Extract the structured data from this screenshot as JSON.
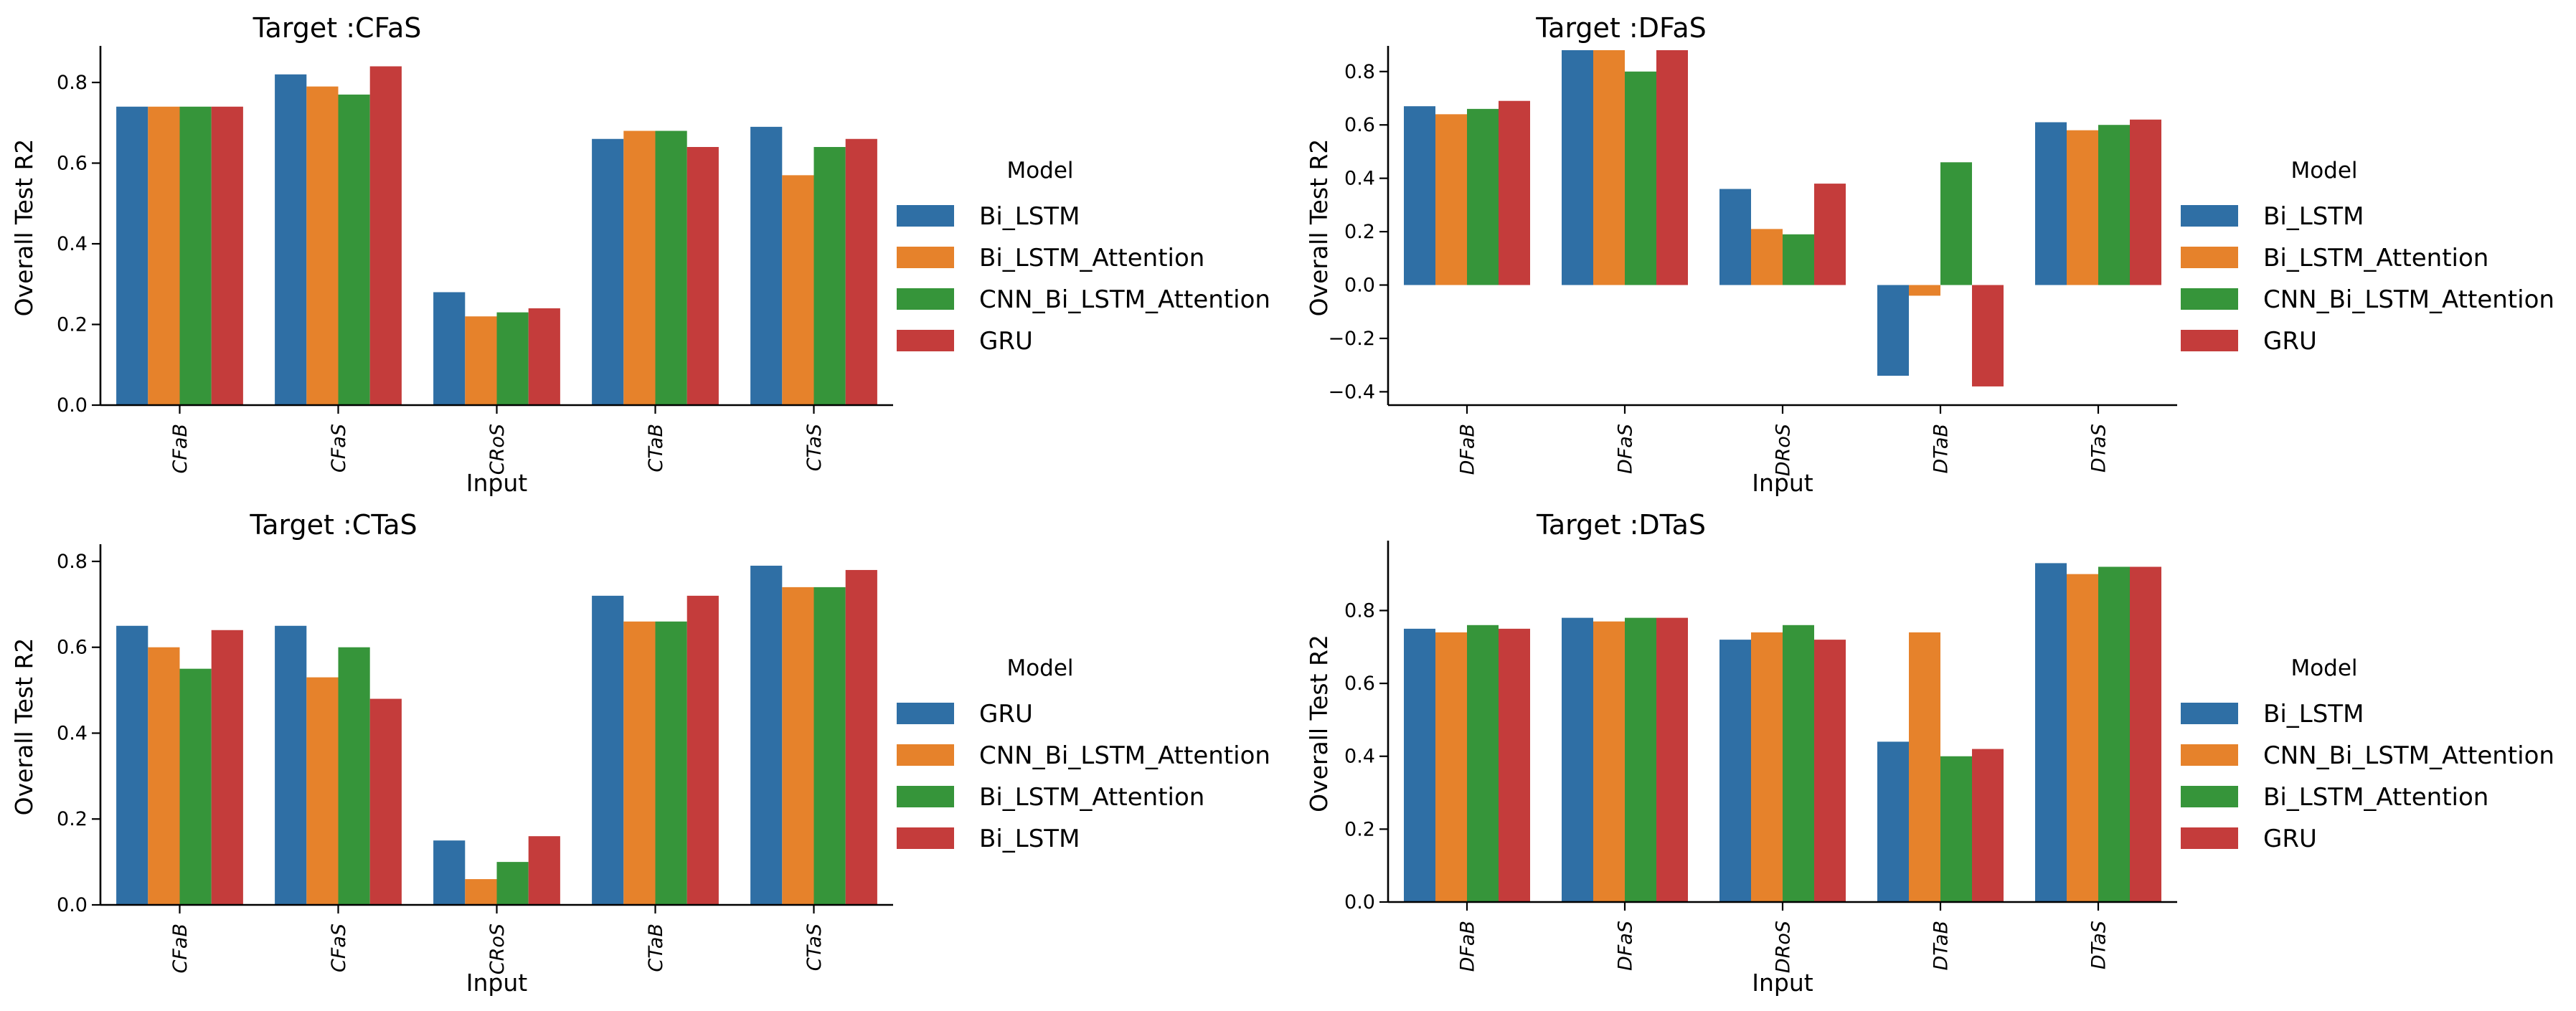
{
  "chart_data": [
    {
      "type": "bar",
      "title": "Target :CFaS",
      "xlabel": "Input",
      "ylabel": "Overall Test R2",
      "categories": [
        "CFaB",
        "CFaS",
        "CRoS",
        "CTaB",
        "CTaS"
      ],
      "ylim": [
        0,
        0.88
      ],
      "yticks": [
        0.0,
        0.2,
        0.4,
        0.6,
        0.8
      ],
      "ytick_labels": [
        "0.0",
        "0.2",
        "0.4",
        "0.6",
        "0.8"
      ],
      "grid": false,
      "legend": {
        "title": "Model",
        "placement": "right"
      },
      "series": [
        {
          "name": "Bi_LSTM",
          "color": "#2f6fa5",
          "values": [
            0.74,
            0.82,
            0.28,
            0.66,
            0.69
          ]
        },
        {
          "name": "Bi_LSTM_Attention",
          "color": "#e6822b",
          "values": [
            0.74,
            0.79,
            0.22,
            0.68,
            0.57
          ]
        },
        {
          "name": "CNN_Bi_LSTM_Attention",
          "color": "#36953a",
          "values": [
            0.74,
            0.77,
            0.23,
            0.68,
            0.64
          ]
        },
        {
          "name": "GRU",
          "color": "#c43c3b",
          "values": [
            0.74,
            0.84,
            0.24,
            0.64,
            0.66
          ]
        }
      ]
    },
    {
      "type": "bar",
      "title": "Target :DFaS",
      "xlabel": "Input",
      "ylabel": "Overall Test R2",
      "categories": [
        "DFaB",
        "DFaS",
        "DRoS",
        "DTaB",
        "DTaS"
      ],
      "ylim": [
        -0.45,
        0.88
      ],
      "yticks": [
        -0.4,
        -0.2,
        0.0,
        0.2,
        0.4,
        0.6,
        0.8
      ],
      "ytick_labels": [
        "−0.4",
        "−0.2",
        "0.0",
        "0.2",
        "0.4",
        "0.6",
        "0.8"
      ],
      "grid": false,
      "legend": {
        "title": "Model",
        "placement": "right"
      },
      "series": [
        {
          "name": "Bi_LSTM",
          "color": "#2f6fa5",
          "values": [
            0.67,
            0.88,
            0.36,
            -0.34,
            0.61
          ]
        },
        {
          "name": "Bi_LSTM_Attention",
          "color": "#e6822b",
          "values": [
            0.64,
            0.88,
            0.21,
            -0.04,
            0.58
          ]
        },
        {
          "name": "CNN_Bi_LSTM_Attention",
          "color": "#36953a",
          "values": [
            0.66,
            0.8,
            0.19,
            0.46,
            0.6
          ]
        },
        {
          "name": "GRU",
          "color": "#c43c3b",
          "values": [
            0.69,
            0.88,
            0.38,
            -0.38,
            0.62
          ]
        }
      ]
    },
    {
      "type": "bar",
      "title": "Target :CTaS",
      "xlabel": "Input",
      "ylabel": "Overall Test R2",
      "categories": [
        "CFaB",
        "CFaS",
        "CRoS",
        "CTaB",
        "CTaS"
      ],
      "ylim": [
        0,
        0.83
      ],
      "yticks": [
        0.0,
        0.2,
        0.4,
        0.6,
        0.8
      ],
      "ytick_labels": [
        "0.0",
        "0.2",
        "0.4",
        "0.6",
        "0.8"
      ],
      "grid": false,
      "legend": {
        "title": "Model",
        "placement": "right"
      },
      "series": [
        {
          "name": "GRU",
          "color": "#2f6fa5",
          "values": [
            0.65,
            0.65,
            0.15,
            0.72,
            0.79
          ]
        },
        {
          "name": "CNN_Bi_LSTM_Attention",
          "color": "#e6822b",
          "values": [
            0.6,
            0.53,
            0.06,
            0.66,
            0.74
          ]
        },
        {
          "name": "Bi_LSTM_Attention",
          "color": "#36953a",
          "values": [
            0.55,
            0.6,
            0.1,
            0.66,
            0.74
          ]
        },
        {
          "name": "Bi_LSTM",
          "color": "#c43c3b",
          "values": [
            0.64,
            0.48,
            0.16,
            0.72,
            0.78
          ]
        }
      ]
    },
    {
      "type": "bar",
      "title": "Target :DTaS",
      "xlabel": "Input",
      "ylabel": "Overall Test R2",
      "categories": [
        "DFaB",
        "DFaS",
        "DRoS",
        "DTaB",
        "DTaS"
      ],
      "ylim": [
        0,
        0.98
      ],
      "yticks": [
        0.0,
        0.2,
        0.4,
        0.6,
        0.8
      ],
      "ytick_labels": [
        "0.0",
        "0.2",
        "0.4",
        "0.6",
        "0.8"
      ],
      "grid": false,
      "legend": {
        "title": "Model",
        "placement": "right"
      },
      "series": [
        {
          "name": "Bi_LSTM",
          "color": "#2f6fa5",
          "values": [
            0.75,
            0.78,
            0.72,
            0.44,
            0.93
          ]
        },
        {
          "name": "CNN_Bi_LSTM_Attention",
          "color": "#e6822b",
          "values": [
            0.74,
            0.77,
            0.74,
            0.74,
            0.9
          ]
        },
        {
          "name": "Bi_LSTM_Attention",
          "color": "#36953a",
          "values": [
            0.76,
            0.78,
            0.76,
            0.4,
            0.92
          ]
        },
        {
          "name": "GRU",
          "color": "#c43c3b",
          "values": [
            0.75,
            0.78,
            0.72,
            0.42,
            0.92
          ]
        }
      ]
    }
  ]
}
